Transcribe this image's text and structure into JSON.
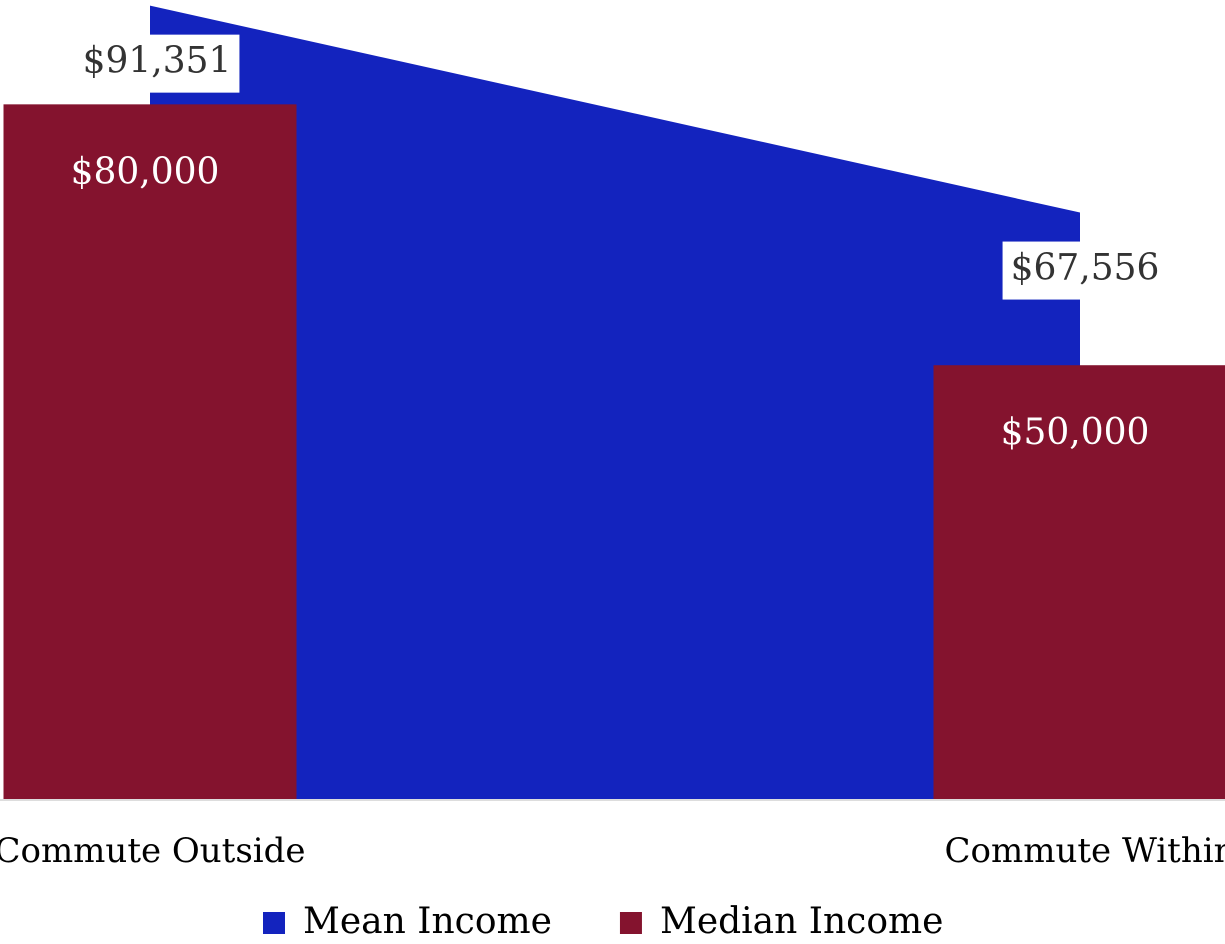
{
  "chart_data": {
    "type": "bar_area",
    "categories": [
      "Commute Outside",
      "Commute Within"
    ],
    "series": [
      {
        "name": "Mean Income",
        "type": "area",
        "color": "#1323be",
        "values": [
          91351,
          67556
        ],
        "value_labels": [
          "$91,351",
          "$67,556"
        ]
      },
      {
        "name": "Median Income",
        "type": "bar",
        "color": "#84132e",
        "values": [
          80000,
          50000
        ],
        "value_labels": [
          "$80,000",
          "$50,000"
        ]
      }
    ],
    "ylim": [
      0,
      92000
    ]
  }
}
